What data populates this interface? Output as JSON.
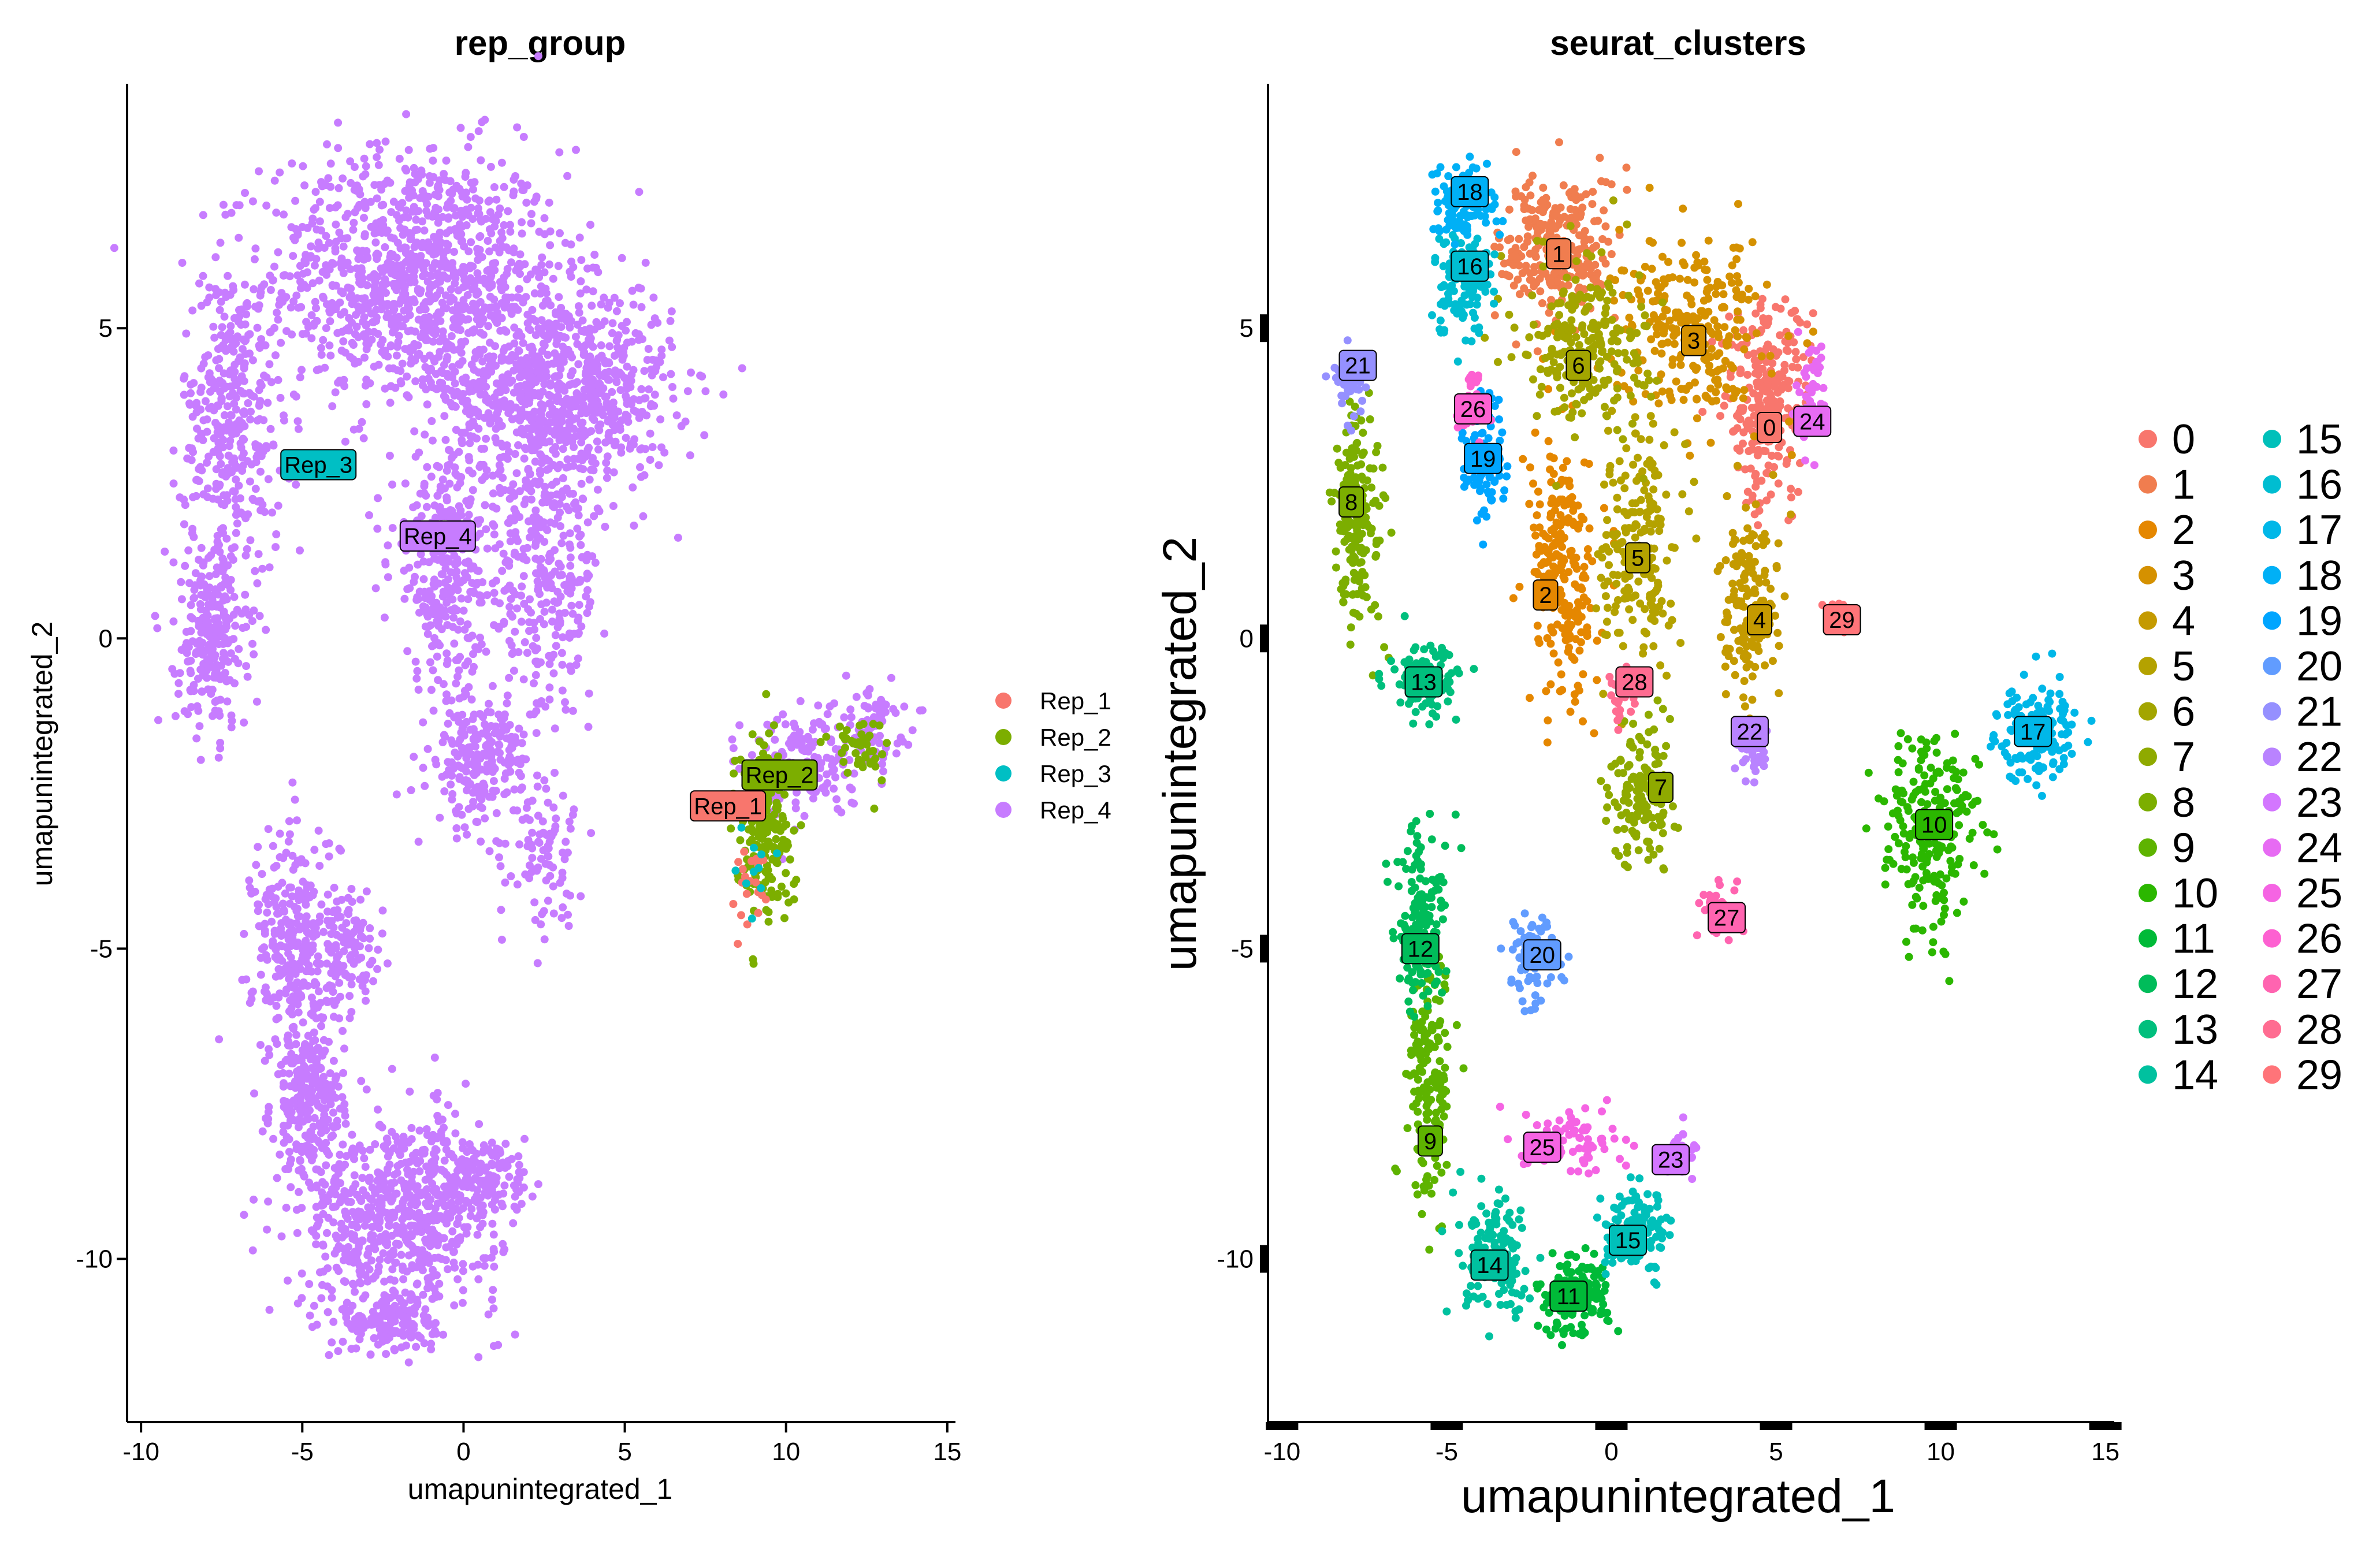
{
  "chart_data": [
    {
      "type": "scatter",
      "title": "rep_group",
      "xlabel": "umapunintegrated_1",
      "ylabel": "umapunintegrated_2",
      "xlim": [
        -10.2,
        15.2
      ],
      "ylim": [
        -12.5,
        8.8
      ],
      "xticks": [
        -10,
        -5,
        0,
        5,
        10,
        15
      ],
      "xtick_labels": [
        "-10",
        "-5",
        "0",
        "5",
        "10",
        "15"
      ],
      "yticks": [
        -10,
        -5,
        0,
        5
      ],
      "ytick_labels": [
        "-10",
        "-5",
        "0",
        "5"
      ],
      "grid": false,
      "legend_position": "right",
      "series": [
        {
          "name": "Rep_1",
          "color": "#F8766D"
        },
        {
          "name": "Rep_2",
          "color": "#7CAE00"
        },
        {
          "name": "Rep_3",
          "color": "#00BFC4"
        },
        {
          "name": "Rep_4",
          "color": "#C77CFF"
        }
      ],
      "point_groups": [
        {
          "series": "Rep_4",
          "regions": [
            {
              "cx": -1.5,
              "cy": 5.8,
              "rx": 4.2,
              "ry": 1.9,
              "n": 1100
            },
            {
              "cx": 3.0,
              "cy": 4.0,
              "rx": 3.2,
              "ry": 1.5,
              "n": 800
            },
            {
              "cx": -7.2,
              "cy": 3.5,
              "rx": 1.4,
              "ry": 2.2,
              "n": 350
            },
            {
              "cx": -7.8,
              "cy": 0.0,
              "rx": 1.0,
              "ry": 1.4,
              "n": 250
            },
            {
              "cx": -0.5,
              "cy": 1.2,
              "rx": 1.6,
              "ry": 1.8,
              "n": 320
            },
            {
              "cx": 2.5,
              "cy": 1.0,
              "rx": 1.6,
              "ry": 2.2,
              "n": 320
            },
            {
              "cx": 0.5,
              "cy": -2.0,
              "rx": 1.4,
              "ry": 1.0,
              "n": 220
            },
            {
              "cx": 2.5,
              "cy": -3.5,
              "rx": 1.0,
              "ry": 1.0,
              "n": 80
            },
            {
              "cx": -5.2,
              "cy": -5.0,
              "rx": 1.2,
              "ry": 1.8,
              "n": 300
            },
            {
              "cx": -3.5,
              "cy": -5.0,
              "rx": 1.0,
              "ry": 0.8,
              "n": 100
            },
            {
              "cx": -4.8,
              "cy": -7.5,
              "rx": 1.0,
              "ry": 1.2,
              "n": 250
            },
            {
              "cx": -2.0,
              "cy": -9.3,
              "rx": 2.8,
              "ry": 1.4,
              "n": 650
            },
            {
              "cx": -2.3,
              "cy": -11.0,
              "rx": 1.4,
              "ry": 0.5,
              "n": 150
            },
            {
              "cx": 0.5,
              "cy": -8.7,
              "rx": 1.5,
              "ry": 0.7,
              "n": 150
            },
            {
              "cx": 10.5,
              "cy": -2.0,
              "rx": 1.6,
              "ry": 0.8,
              "n": 160
            },
            {
              "cx": 12.6,
              "cy": -1.4,
              "rx": 1.0,
              "ry": 0.6,
              "n": 80
            }
          ]
        },
        {
          "series": "Rep_2",
          "regions": [
            {
              "cx": 9.3,
              "cy": -3.0,
              "rx": 0.8,
              "ry": 1.3,
              "n": 200
            },
            {
              "cx": 12.3,
              "cy": -1.8,
              "rx": 0.8,
              "ry": 0.5,
              "n": 50
            }
          ]
        },
        {
          "series": "Rep_1",
          "regions": [
            {
              "cx": 8.8,
              "cy": -4.0,
              "rx": 0.5,
              "ry": 0.6,
              "n": 20
            }
          ]
        },
        {
          "series": "Rep_3",
          "regions": [
            {
              "cx": 9.1,
              "cy": -3.3,
              "rx": 0.6,
              "ry": 0.8,
              "n": 12
            }
          ]
        }
      ],
      "labels": [
        {
          "text": "Rep_1",
          "x": 8.2,
          "y": -2.7,
          "color": "#F8766D"
        },
        {
          "text": "Rep_2",
          "x": 9.8,
          "y": -2.2,
          "color": "#7CAE00"
        },
        {
          "text": "Rep_3",
          "x": -4.5,
          "y": 2.8,
          "color": "#00BFC4"
        },
        {
          "text": "Rep_4",
          "x": -0.8,
          "y": 1.65,
          "color": "#C77CFF"
        }
      ]
    },
    {
      "type": "scatter",
      "title": "seurat_clusters",
      "xlabel": "umapunintegrated_1",
      "ylabel": "umapunintegrated_2",
      "xlim": [
        -10.2,
        15.2
      ],
      "ylim": [
        -12.5,
        8.8
      ],
      "xticks": [
        -10,
        -5,
        0,
        5,
        10,
        15
      ],
      "xtick_labels": [
        "-10",
        "-5",
        "0",
        "5",
        "10",
        "15"
      ],
      "yticks": [
        -10,
        -5,
        0,
        5
      ],
      "ytick_labels": [
        "-10",
        "-5",
        "0",
        "5"
      ],
      "grid": false,
      "legend_position": "right",
      "series": [
        {
          "name": "0",
          "color": "#F8766D",
          "cx": 4.7,
          "cy": 3.8,
          "rx": 1.2,
          "ry": 1.5,
          "n": 260,
          "label_x": 4.8,
          "label_y": 3.4
        },
        {
          "name": "1",
          "color": "#F07D4F",
          "cx": -1.6,
          "cy": 6.3,
          "rx": 1.6,
          "ry": 1.1,
          "n": 260,
          "label_x": -1.6,
          "label_y": 6.2
        },
        {
          "name": "2",
          "color": "#E58700",
          "cx": -1.5,
          "cy": 1.0,
          "rx": 0.9,
          "ry": 1.9,
          "n": 240,
          "label_x": -2.0,
          "label_y": 0.7
        },
        {
          "name": "3",
          "color": "#D59100",
          "cx": 2.5,
          "cy": 5.0,
          "rx": 2.0,
          "ry": 1.3,
          "n": 260,
          "label_x": 2.5,
          "label_y": 4.8
        },
        {
          "name": "4",
          "color": "#C49A00",
          "cx": 4.2,
          "cy": 0.5,
          "rx": 0.8,
          "ry": 1.4,
          "n": 160,
          "label_x": 4.5,
          "label_y": 0.3
        },
        {
          "name": "5",
          "color": "#B4A200",
          "cx": 0.8,
          "cy": 1.5,
          "rx": 1.0,
          "ry": 1.7,
          "n": 200,
          "label_x": 0.8,
          "label_y": 1.3
        },
        {
          "name": "6",
          "color": "#A3A500",
          "cx": -0.8,
          "cy": 4.8,
          "rx": 1.7,
          "ry": 1.3,
          "n": 240,
          "label_x": -1.0,
          "label_y": 4.4
        },
        {
          "name": "7",
          "color": "#8FAA00",
          "cx": 1.0,
          "cy": -2.5,
          "rx": 0.9,
          "ry": 1.0,
          "n": 150,
          "label_x": 1.5,
          "label_y": -2.4
        },
        {
          "name": "8",
          "color": "#7CAE00",
          "cx": -7.7,
          "cy": 1.9,
          "rx": 0.7,
          "ry": 1.6,
          "n": 180,
          "label_x": -7.9,
          "label_y": 2.2
        },
        {
          "name": "9",
          "color": "#5EB300",
          "cx": -5.5,
          "cy": -7.0,
          "rx": 0.6,
          "ry": 1.8,
          "n": 160,
          "label_x": -5.5,
          "label_y": -8.1
        },
        {
          "name": "10",
          "color": "#2BB700",
          "cx": 9.7,
          "cy": -3.1,
          "rx": 1.3,
          "ry": 1.5,
          "n": 230,
          "label_x": 9.8,
          "label_y": -3.0
        },
        {
          "name": "11",
          "color": "#00BA38",
          "cx": -1.2,
          "cy": -10.6,
          "rx": 1.0,
          "ry": 0.6,
          "n": 140,
          "label_x": -1.3,
          "label_y": -10.6
        },
        {
          "name": "12",
          "color": "#00BC5A",
          "cx": -5.8,
          "cy": -4.6,
          "rx": 0.7,
          "ry": 1.3,
          "n": 150,
          "label_x": -5.8,
          "label_y": -5.0
        },
        {
          "name": "13",
          "color": "#00BF7D",
          "cx": -5.7,
          "cy": -0.7,
          "rx": 0.9,
          "ry": 0.5,
          "n": 120,
          "label_x": -5.7,
          "label_y": -0.7
        },
        {
          "name": "14",
          "color": "#00C19F",
          "cx": -3.4,
          "cy": -10.0,
          "rx": 1.0,
          "ry": 0.8,
          "n": 150,
          "label_x": -3.7,
          "label_y": -10.1
        },
        {
          "name": "15",
          "color": "#00C0BA",
          "cx": 0.8,
          "cy": -9.6,
          "rx": 0.9,
          "ry": 0.6,
          "n": 120,
          "label_x": 0.5,
          "label_y": -9.7
        },
        {
          "name": "16",
          "color": "#00BDD1",
          "cx": -4.5,
          "cy": 5.8,
          "rx": 0.9,
          "ry": 0.8,
          "n": 120,
          "label_x": -4.3,
          "label_y": 6.0
        },
        {
          "name": "17",
          "color": "#00B7E8",
          "cx": 12.9,
          "cy": -1.5,
          "rx": 1.1,
          "ry": 0.7,
          "n": 140,
          "label_x": 12.8,
          "label_y": -1.5
        },
        {
          "name": "18",
          "color": "#00B0F6",
          "cx": -4.5,
          "cy": 7.0,
          "rx": 0.9,
          "ry": 0.6,
          "n": 100,
          "label_x": -4.3,
          "label_y": 7.2
        },
        {
          "name": "19",
          "color": "#00A5FF",
          "cx": -3.8,
          "cy": 2.9,
          "rx": 0.6,
          "ry": 0.9,
          "n": 100,
          "label_x": -3.9,
          "label_y": 2.9
        },
        {
          "name": "20",
          "color": "#619CFF",
          "cx": -2.4,
          "cy": -5.2,
          "rx": 0.7,
          "ry": 0.6,
          "n": 90,
          "label_x": -2.1,
          "label_y": -5.1
        },
        {
          "name": "21",
          "color": "#9590FF",
          "cx": -7.9,
          "cy": 4.2,
          "rx": 0.5,
          "ry": 0.5,
          "n": 50,
          "label_x": -7.7,
          "label_y": 4.4
        },
        {
          "name": "22",
          "color": "#B983FF",
          "cx": 4.3,
          "cy": -1.8,
          "rx": 0.4,
          "ry": 0.4,
          "n": 40,
          "label_x": 4.2,
          "label_y": -1.5
        },
        {
          "name": "23",
          "color": "#D376FF",
          "cx": 2.0,
          "cy": -8.3,
          "rx": 0.5,
          "ry": 0.4,
          "n": 40,
          "label_x": 1.8,
          "label_y": -8.4
        },
        {
          "name": "24",
          "color": "#E76BF3",
          "cx": 6.2,
          "cy": 3.9,
          "rx": 0.4,
          "ry": 0.8,
          "n": 50,
          "label_x": 6.1,
          "label_y": 3.5
        },
        {
          "name": "25",
          "color": "#F564E3",
          "cx": -1.2,
          "cy": -8.1,
          "rx": 1.4,
          "ry": 0.5,
          "n": 80,
          "label_x": -2.1,
          "label_y": -8.2
        },
        {
          "name": "26",
          "color": "#FD61D1",
          "cx": -4.2,
          "cy": 3.8,
          "rx": 0.4,
          "ry": 0.5,
          "n": 40,
          "label_x": -4.2,
          "label_y": 3.7
        },
        {
          "name": "27",
          "color": "#FF64B0",
          "cx": 3.3,
          "cy": -4.4,
          "rx": 0.5,
          "ry": 0.4,
          "n": 40,
          "label_x": 3.5,
          "label_y": -4.5
        },
        {
          "name": "28",
          "color": "#FF6C91",
          "cx": 0.3,
          "cy": -0.8,
          "rx": 0.4,
          "ry": 0.4,
          "n": 30,
          "label_x": 0.7,
          "label_y": -0.7
        },
        {
          "name": "29",
          "color": "#FF7479",
          "cx": 6.9,
          "cy": 0.3,
          "rx": 0.3,
          "ry": 0.3,
          "n": 15,
          "label_x": 7.0,
          "label_y": 0.3
        }
      ]
    }
  ]
}
